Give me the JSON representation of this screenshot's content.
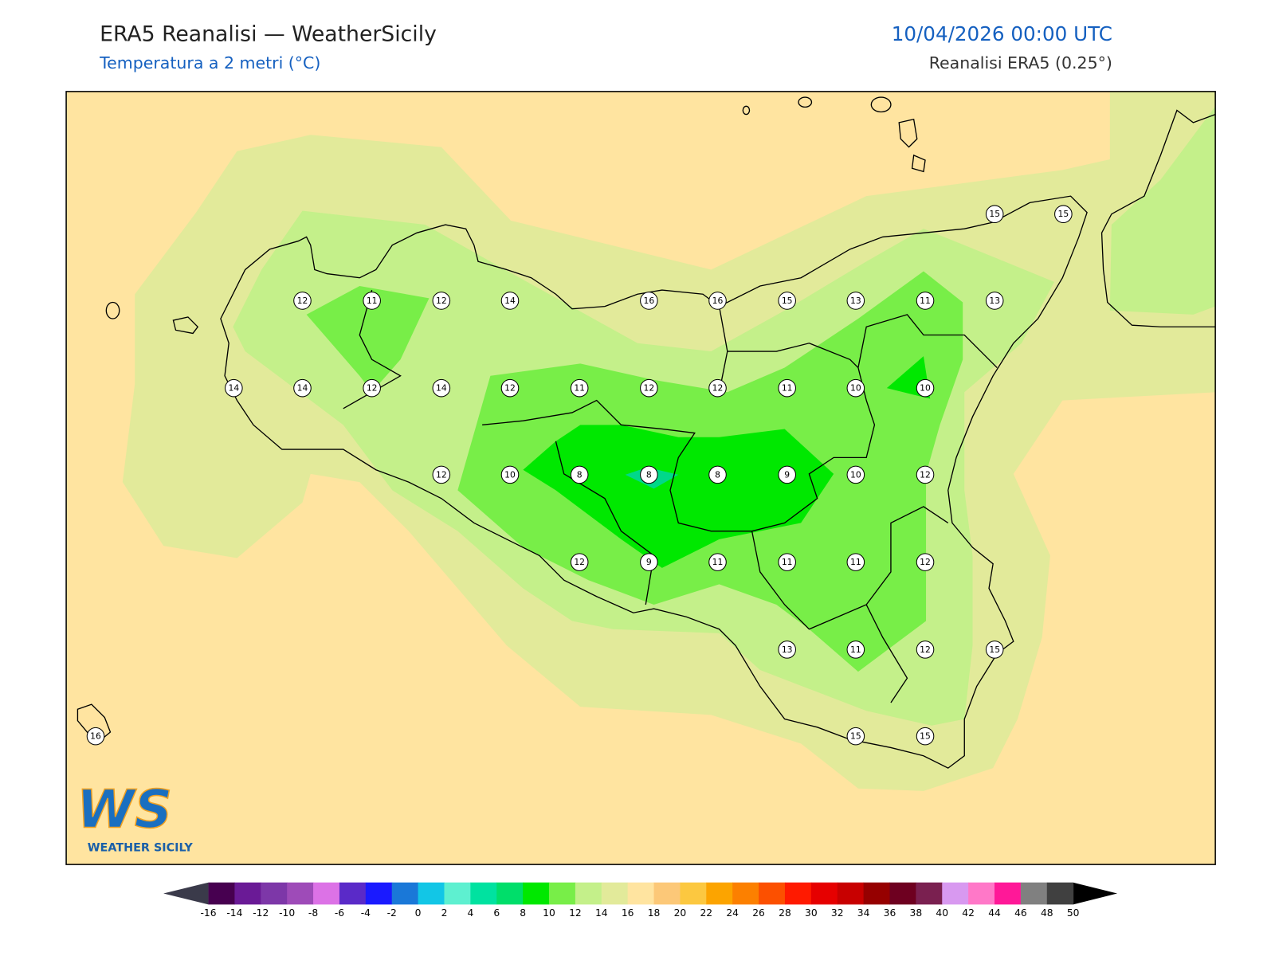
{
  "header": {
    "title": "ERA5 Reanalisi — WeatherSicily",
    "subtitle": "Temperatura a 2 metri (°C)",
    "datetime": "10/04/2026 00:00 UTC",
    "source": "Reanalisi ERA5 (0.25°)"
  },
  "stations": [
    {
      "value": 15
    },
    {
      "value": 15
    },
    {
      "value": 12
    },
    {
      "value": 11
    },
    {
      "value": 12
    },
    {
      "value": 14
    },
    {
      "value": 16
    },
    {
      "value": 16
    },
    {
      "value": 15
    },
    {
      "value": 13
    },
    {
      "value": 11
    },
    {
      "value": 13
    },
    {
      "value": 14
    },
    {
      "value": 14
    },
    {
      "value": 12
    },
    {
      "value": 14
    },
    {
      "value": 12
    },
    {
      "value": 11
    },
    {
      "value": 12
    },
    {
      "value": 12
    },
    {
      "value": 11
    },
    {
      "value": 10
    },
    {
      "value": 10
    },
    {
      "value": 12
    },
    {
      "value": 10
    },
    {
      "value": 8
    },
    {
      "value": 8
    },
    {
      "value": 8
    },
    {
      "value": 9
    },
    {
      "value": 10
    },
    {
      "value": 12
    },
    {
      "value": 12
    },
    {
      "value": 9
    },
    {
      "value": 11
    },
    {
      "value": 11
    },
    {
      "value": 11
    },
    {
      "value": 12
    },
    {
      "value": 13
    },
    {
      "value": 11
    },
    {
      "value": 12
    },
    {
      "value": 15
    },
    {
      "value": 16
    },
    {
      "value": 15
    },
    {
      "value": 15
    }
  ],
  "logo": {
    "letters": "WS",
    "name": "WEATHER SICILY"
  },
  "colorbar": {
    "ticks": [
      -16,
      -14,
      -12,
      -10,
      -8,
      -6,
      -4,
      -2,
      0,
      2,
      4,
      6,
      8,
      10,
      12,
      14,
      16,
      18,
      20,
      22,
      24,
      26,
      28,
      30,
      32,
      34,
      36,
      38,
      40,
      42,
      44,
      46,
      48,
      50
    ],
    "colors": [
      "#470050",
      "#6a1a96",
      "#7d37a8",
      "#9e4bb8",
      "#dc72e6",
      "#5a2ac8",
      "#1a1aff",
      "#1a78d8",
      "#12c6e6",
      "#5ef0d0",
      "#00e2a0",
      "#00de6a",
      "#00e800",
      "#78ee48",
      "#c4f08a",
      "#e2ea9a",
      "#ffe4a0",
      "#fcc878",
      "#fcc840",
      "#fca400",
      "#fc8000",
      "#fc5000",
      "#ff1a00",
      "#e60000",
      "#c80000",
      "#960000",
      "#6e0020",
      "#7a2050",
      "#d899f0",
      "#ff78c8",
      "#ff1898",
      "#808080",
      "#404040"
    ],
    "under_color": "#3a3a4a",
    "over_color": "#000000"
  }
}
